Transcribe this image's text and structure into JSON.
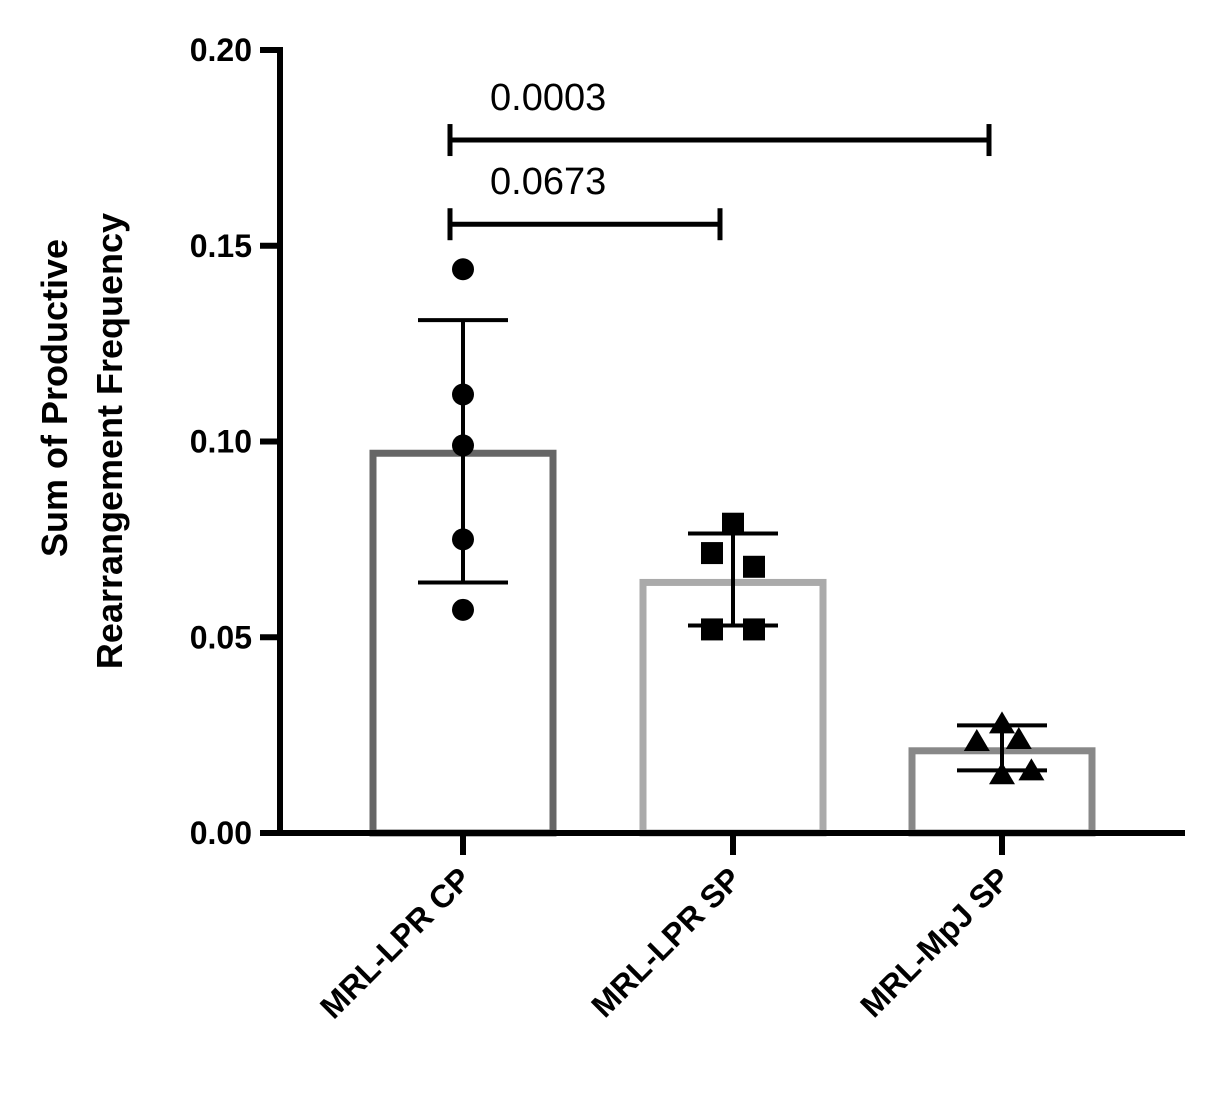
{
  "chart_data": {
    "type": "bar",
    "ylabel_lines": [
      "Sum of Productive",
      "Rearrangement Frequency"
    ],
    "xlabel": "",
    "ylim": [
      0,
      0.2
    ],
    "yticks": [
      "0.00",
      "0.05",
      "0.10",
      "0.15",
      "0.20"
    ],
    "ytick_values": [
      0,
      0.05,
      0.1,
      0.15,
      0.2
    ],
    "categories": [
      "MRL-LPR CP",
      "MRL-LPR SP",
      "MRL-MpJ SP"
    ],
    "means": [
      0.097,
      0.064,
      0.021
    ],
    "error_low": [
      0.064,
      0.053,
      0.016
    ],
    "error_high": [
      0.131,
      0.0765,
      0.0275
    ],
    "bar_colors": [
      "#666666",
      "#aaaaaa",
      "#888888"
    ],
    "marker_shapes": [
      "circle",
      "square",
      "triangle"
    ],
    "points": [
      [
        {
          "x_offset": 0,
          "y": 0.144
        },
        {
          "x_offset": 0,
          "y": 0.112
        },
        {
          "x_offset": 0,
          "y": 0.099
        },
        {
          "x_offset": 0,
          "y": 0.075
        },
        {
          "x_offset": 0,
          "y": 0.057
        }
      ],
      [
        {
          "x_offset": 0,
          "y": 0.079
        },
        {
          "x_offset": -0.5,
          "y": 0.0715
        },
        {
          "x_offset": 0.5,
          "y": 0.068
        },
        {
          "x_offset": -0.5,
          "y": 0.052
        },
        {
          "x_offset": 0.5,
          "y": 0.052
        }
      ],
      [
        {
          "x_offset": 0,
          "y": 0.028
        },
        {
          "x_offset": -0.6,
          "y": 0.0235
        },
        {
          "x_offset": 0.4,
          "y": 0.024
        },
        {
          "x_offset": 0,
          "y": 0.015
        },
        {
          "x_offset": 0.7,
          "y": 0.016
        }
      ]
    ],
    "comparisons": [
      {
        "from": 0,
        "to": 2,
        "y": 0.177,
        "label": "0.0003"
      },
      {
        "from": 0,
        "to": 1,
        "y": 0.1555,
        "label": "0.0673"
      }
    ]
  }
}
